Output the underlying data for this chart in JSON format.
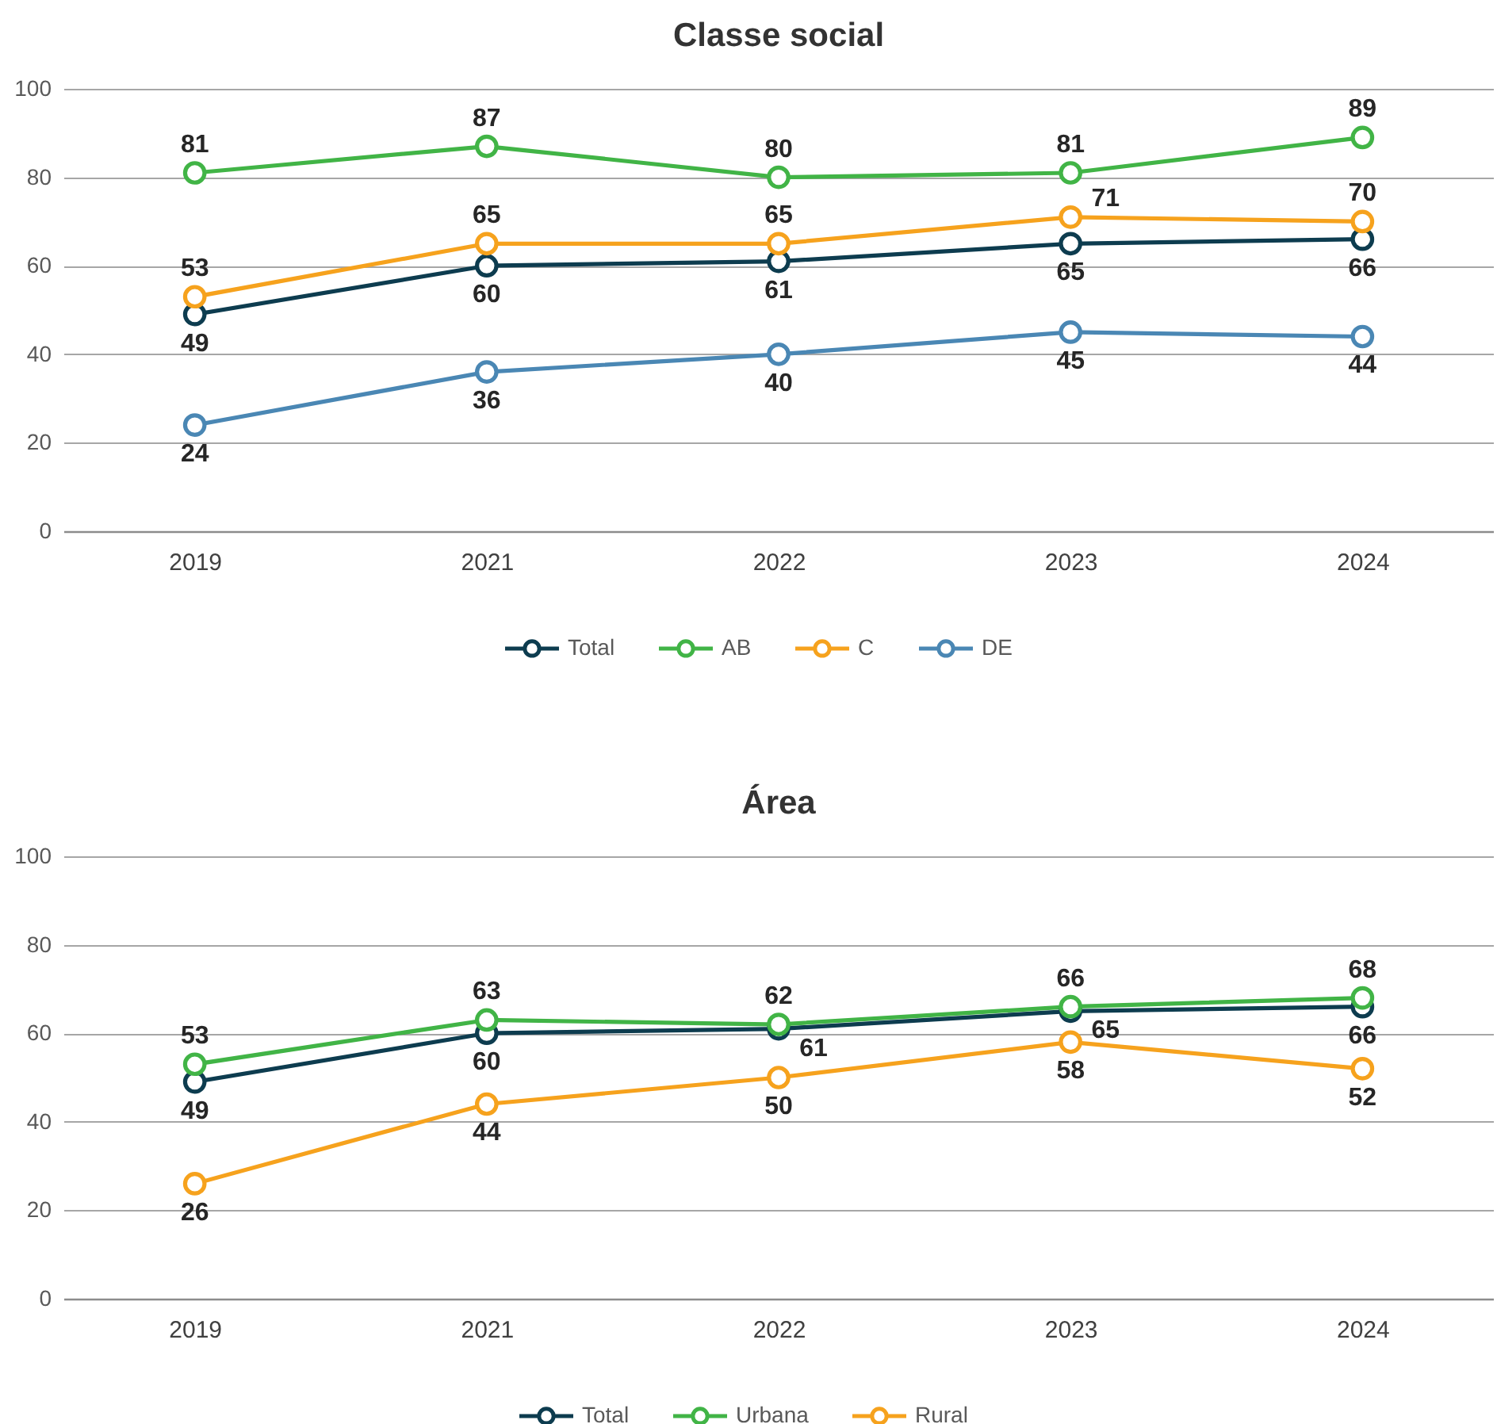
{
  "chart_data": [
    {
      "type": "line",
      "title": "Classe social",
      "categories": [
        "2019",
        "2021",
        "2022",
        "2023",
        "2024"
      ],
      "series": [
        {
          "name": "Total",
          "color": "#0d3c4f",
          "values": [
            49,
            60,
            61,
            65,
            66
          ]
        },
        {
          "name": "AB",
          "color": "#41b446",
          "values": [
            81,
            87,
            80,
            81,
            89
          ]
        },
        {
          "name": "C",
          "color": "#f6a21d",
          "values": [
            53,
            65,
            65,
            71,
            70
          ]
        },
        {
          "name": "DE",
          "color": "#4a87b4",
          "values": [
            24,
            36,
            40,
            45,
            44
          ]
        }
      ],
      "ylim": [
        0,
        100
      ],
      "yticks": [
        0,
        20,
        40,
        60,
        80,
        100
      ],
      "grid": "y",
      "legend": "bottom",
      "marker": "circle",
      "line_style": "solid",
      "data_labels": true
    },
    {
      "type": "line",
      "title": "Área",
      "categories": [
        "2019",
        "2021",
        "2022",
        "2023",
        "2024"
      ],
      "series": [
        {
          "name": "Total",
          "color": "#0d3c4f",
          "values": [
            49,
            60,
            61,
            65,
            66
          ]
        },
        {
          "name": "Urbana",
          "color": "#41b446",
          "values": [
            53,
            63,
            62,
            66,
            68
          ]
        },
        {
          "name": "Rural",
          "color": "#f6a21d",
          "values": [
            26,
            44,
            50,
            58,
            52
          ]
        }
      ],
      "ylim": [
        0,
        100
      ],
      "yticks": [
        0,
        20,
        40,
        60,
        80,
        100
      ],
      "grid": "y",
      "legend": "bottom",
      "marker": "circle",
      "line_style": "solid",
      "data_labels": true
    }
  ]
}
